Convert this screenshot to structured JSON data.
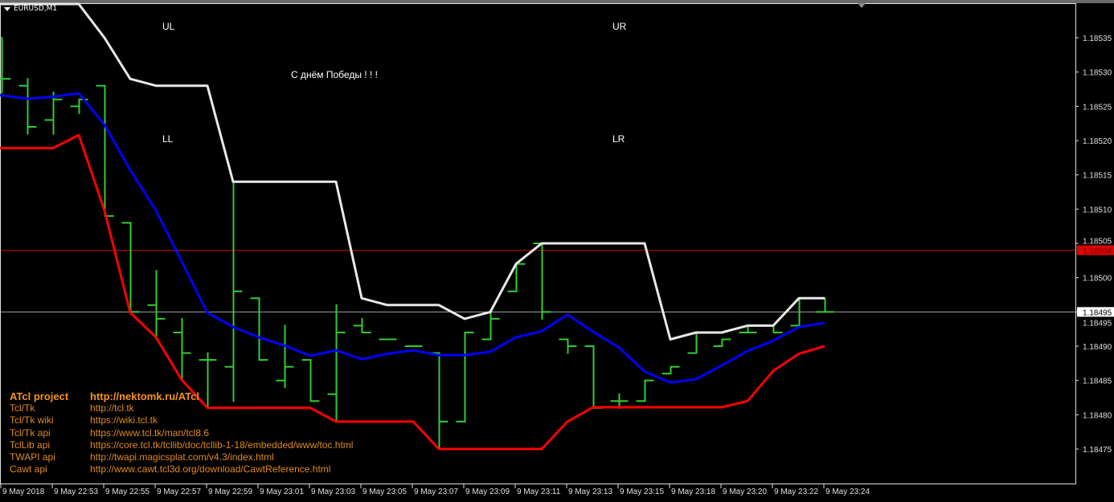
{
  "window": {
    "symbol_label": "EURUSD,M1"
  },
  "labels": {
    "ul": "UL",
    "ur": "UR",
    "ll": "LL",
    "lr": "LR",
    "greeting": "С днём Победы ! ! !"
  },
  "info": {
    "header": {
      "key": "ATcl project",
      "value": "http://nektomk.ru/ATcl"
    },
    "rows": [
      {
        "key": "Tcl/Tk",
        "value": "http://tcl.tk"
      },
      {
        "key": "Tcl/Tk wiki",
        "value": "https://wiki.tcl.tk"
      },
      {
        "key": "Tcl/Tk api",
        "value": "https://www.tcl.tk/man/tcl8.6"
      },
      {
        "key": "TclLib api",
        "value": "https://core.tcl.tk/tcllib/doc/tcllib-1-18/embedded/www/toc.html"
      },
      {
        "key": "TWAPI api",
        "value": "http://twapi.magicsplat.com/v4.3/index.html"
      },
      {
        "key": "Cawt api",
        "value": "http://www.cawt.tcl3d.org/download/CawtReference.html"
      }
    ]
  },
  "colors": {
    "background": "#000000",
    "bars": "#32cd32",
    "upper_band": "#e8e8e8",
    "middle_line": "#0000ff",
    "lower_band": "#ff0000",
    "ask_line": "#c00000",
    "bid_line": "#a0a0a0",
    "text": "#ffffff",
    "info_text": "#e08a1e"
  },
  "chart_data": {
    "type": "ohlc",
    "symbol": "EURUSD",
    "timeframe": "M1",
    "ylim": [
      1.1847,
      1.1854
    ],
    "y_ticks": [
      "1.18535",
      "1.18530",
      "1.18525",
      "1.18520",
      "1.18515",
      "1.18510",
      "1.18505",
      "1.18500",
      "1.18495",
      "1.18490",
      "1.18485",
      "1.18480",
      "1.18475"
    ],
    "x_tick_labels": [
      "9 May 2018",
      "9 May 22:53",
      "9 May 22:55",
      "9 May 22:57",
      "9 May 22:59",
      "9 May 23:01",
      "9 May 23:03",
      "9 May 23:05",
      "9 May 23:07",
      "9 May 23:09",
      "9 May 23:11",
      "9 May 23:13",
      "9 May 23:15",
      "9 May 23:18",
      "9 May 23:20",
      "9 May 23:22",
      "9 May 23:24"
    ],
    "ask_price": "1.18504",
    "bid_price": "1.18495",
    "bars": [
      [
        1.18529,
        1.18535,
        1.18527,
        1.18529
      ],
      [
        1.18528,
        1.18529,
        1.18521,
        1.18522
      ],
      [
        1.18523,
        1.18527,
        1.18521,
        1.18526
      ],
      [
        1.18525,
        1.18526,
        1.18524,
        1.18526
      ],
      [
        1.18528,
        1.18528,
        1.18509,
        1.18509
      ],
      [
        1.18508,
        1.18508,
        1.18495,
        1.18495
      ],
      [
        1.18496,
        1.18501,
        1.18491,
        1.18494
      ],
      [
        1.18492,
        1.18494,
        1.18485,
        1.18489
      ],
      [
        1.18488,
        1.18489,
        1.18481,
        1.18488
      ],
      [
        1.18487,
        1.18514,
        1.18482,
        1.18498
      ],
      [
        1.18497,
        1.18497,
        1.18488,
        1.18488
      ],
      [
        1.18485,
        1.18493,
        1.18484,
        1.18487
      ],
      [
        1.18488,
        1.18488,
        1.18482,
        1.18482
      ],
      [
        1.18483,
        1.18496,
        1.18479,
        1.18492
      ],
      [
        1.18493,
        1.18494,
        1.18492,
        1.18492
      ],
      [
        1.18491,
        1.18491,
        1.18491,
        1.18491
      ],
      [
        1.1849,
        1.1849,
        1.1849,
        1.1849
      ],
      [
        1.18489,
        1.18489,
        1.18475,
        1.18479
      ],
      [
        1.18479,
        1.18492,
        1.18479,
        1.18492
      ],
      [
        1.18491,
        1.18495,
        1.18491,
        1.18494
      ],
      [
        1.18498,
        1.18502,
        1.18498,
        1.18502
      ],
      [
        1.18505,
        1.18505,
        1.18494,
        1.18495
      ],
      [
        1.18491,
        1.18491,
        1.18489,
        1.1849
      ],
      [
        1.1849,
        1.1849,
        1.18481,
        1.18481
      ],
      [
        1.18482,
        1.18483,
        1.18481,
        1.18482
      ],
      [
        1.18482,
        1.18485,
        1.18482,
        1.18485
      ],
      [
        1.18486,
        1.18487,
        1.18486,
        1.18487
      ],
      [
        1.18489,
        1.18492,
        1.18489,
        1.18492
      ],
      [
        1.1849,
        1.18491,
        1.1849,
        1.18491
      ],
      [
        1.18492,
        1.18493,
        1.18492,
        1.18492
      ],
      [
        1.18493,
        1.18493,
        1.18492,
        1.18492
      ],
      [
        1.18493,
        1.18497,
        1.18493,
        1.18497
      ],
      [
        1.18495,
        1.18497,
        1.18495,
        1.18495
      ]
    ],
    "upper_band": [
      1.1854,
      1.1854,
      1.1854,
      1.1854,
      1.18535,
      1.18529,
      1.18528,
      1.18528,
      1.18528,
      1.18514,
      1.18514,
      1.18514,
      1.18514,
      1.18514,
      1.18497,
      1.18496,
      1.18496,
      1.18496,
      1.18494,
      1.18495,
      1.18502,
      1.18505,
      1.18505,
      1.18505,
      1.18505,
      1.18505,
      1.18491,
      1.18492,
      1.18492,
      1.18493,
      1.18493,
      1.18497,
      1.18497
    ],
    "middle_line": [
      1.185266,
      1.185261,
      1.185264,
      1.185269,
      1.185223,
      1.185157,
      1.185098,
      1.185024,
      1.184949,
      1.184928,
      1.184913,
      1.184901,
      1.184886,
      1.184894,
      1.184881,
      1.184889,
      1.184894,
      1.184887,
      1.184887,
      1.184892,
      1.184913,
      1.184922,
      1.184946,
      1.184921,
      1.184898,
      1.184863,
      1.184847,
      1.184852,
      1.184872,
      1.184893,
      1.184908,
      1.184928,
      1.184934
    ],
    "lower_band": [
      1.185189,
      1.185189,
      1.185189,
      1.185208,
      1.185098,
      1.184949,
      1.184913,
      1.184851,
      1.18481,
      1.18481,
      1.18481,
      1.18481,
      1.18481,
      1.18479,
      1.18479,
      1.18479,
      1.18479,
      1.18475,
      1.18475,
      1.18475,
      1.18475,
      1.18475,
      1.18479,
      1.184811,
      1.184811,
      1.184811,
      1.184811,
      1.184811,
      1.184811,
      1.18482,
      1.184864,
      1.184889,
      1.1849
    ]
  }
}
